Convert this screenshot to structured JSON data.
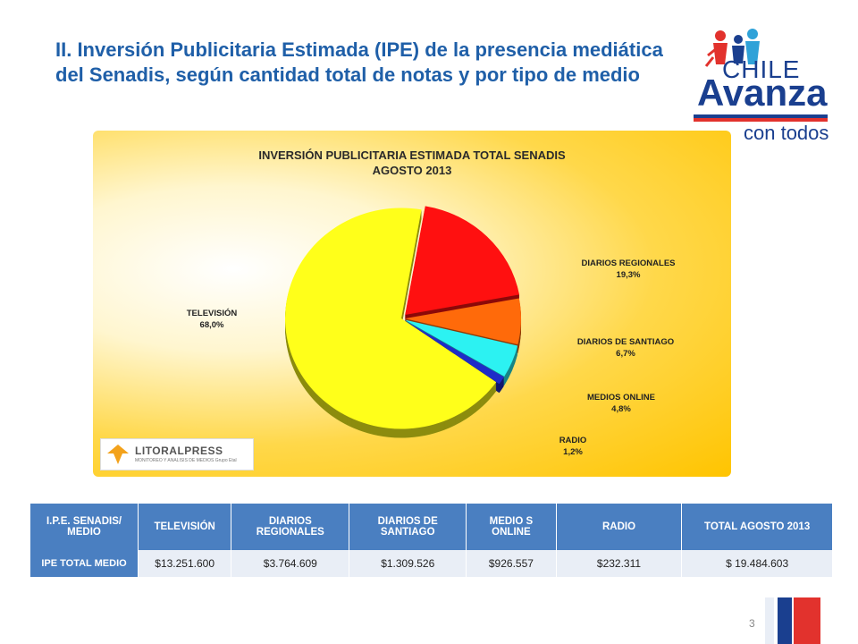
{
  "slide": {
    "title": "II. Inversión Publicitaria Estimada (IPE) de la presencia mediática del Senadis, según cantidad total de notas y por tipo de medio",
    "page_number": "3"
  },
  "logo": {
    "line1": "CHILE",
    "line2": "Avanza",
    "line3": "con todos"
  },
  "source_logo": {
    "name": "LITORALPRESS",
    "tagline": "MONITOREO Y ANALISIS DE MEDIOS Grupo Etal"
  },
  "chart_data": {
    "type": "pie",
    "title": "INVERSIÓN PUBLICITARIA ESTIMADA TOTAL SENADIS",
    "subtitle": "AGOSTO 2013",
    "slices": [
      {
        "label": "TELEVISIÓN",
        "value": 68.0,
        "display": "68,0%",
        "color": "#ffff1a"
      },
      {
        "label": "DIARIOS REGIONALES",
        "value": 19.3,
        "display": "19,3%",
        "color": "#ff1010"
      },
      {
        "label": "DIARIOS DE SANTIAGO",
        "value": 6.7,
        "display": "6,7%",
        "color": "#ff6a0a"
      },
      {
        "label": "MEDIOS ONLINE",
        "value": 4.8,
        "display": "4,8%",
        "color": "#2cf2f2"
      },
      {
        "label": "RADIO",
        "value": 1.2,
        "display": "1,2%",
        "color": "#1e2cc8"
      }
    ]
  },
  "table": {
    "header": [
      "I.P.E. SENADIS/ MEDIO",
      "TELEVISIÓN",
      "DIARIOS REGIONALES",
      "DIARIOS DE SANTIAGO",
      "MEDIO S ONLINE",
      "RADIO",
      "TOTAL AGOSTO 2013"
    ],
    "row_label": "IPE TOTAL MEDIO",
    "values": [
      "$13.251.600",
      "$3.764.609",
      "$1.309.526",
      "$926.557",
      "$232.311",
      "$ 19.484.603"
    ]
  }
}
